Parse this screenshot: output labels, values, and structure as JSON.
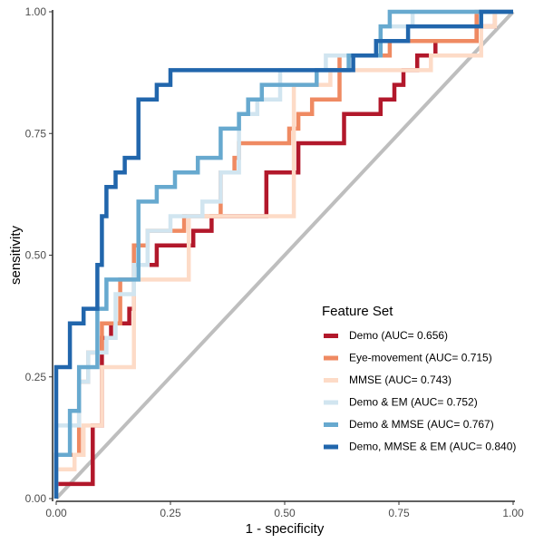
{
  "chart_data": {
    "type": "line",
    "title": "",
    "xlabel": "1 - specificity",
    "ylabel": "sensitivity",
    "xlim": [
      0,
      1
    ],
    "ylim": [
      0,
      1
    ],
    "x_ticks": [
      0,
      0.25,
      0.5,
      0.75,
      1
    ],
    "x_tick_labels": [
      "0.00",
      "0.25",
      "0.50",
      "0.75",
      "1.00"
    ],
    "y_ticks": [
      0,
      0.25,
      0.5,
      0.75,
      1
    ],
    "y_tick_labels": [
      "0.00",
      "0.25",
      "0.50",
      "0.75",
      "1.00"
    ],
    "grid": false,
    "legend": {
      "title": "Feature Set",
      "placement": "bottom-right"
    },
    "reference_line": {
      "x": [
        0,
        1
      ],
      "y": [
        0,
        1
      ],
      "color": "#bebebe"
    },
    "series": [
      {
        "name": "Demo (AUC= 0.656)",
        "color": "#b2182b",
        "points": [
          [
            0,
            0
          ],
          [
            0,
            0.03
          ],
          [
            0.08,
            0.03
          ],
          [
            0.08,
            0.15
          ],
          [
            0.1,
            0.15
          ],
          [
            0.1,
            0.33
          ],
          [
            0.12,
            0.33
          ],
          [
            0.12,
            0.36
          ],
          [
            0.16,
            0.36
          ],
          [
            0.16,
            0.39
          ],
          [
            0.17,
            0.39
          ],
          [
            0.17,
            0.48
          ],
          [
            0.22,
            0.48
          ],
          [
            0.22,
            0.52
          ],
          [
            0.3,
            0.52
          ],
          [
            0.3,
            0.55
          ],
          [
            0.34,
            0.55
          ],
          [
            0.34,
            0.58
          ],
          [
            0.46,
            0.58
          ],
          [
            0.46,
            0.67
          ],
          [
            0.53,
            0.67
          ],
          [
            0.53,
            0.73
          ],
          [
            0.63,
            0.73
          ],
          [
            0.63,
            0.79
          ],
          [
            0.71,
            0.79
          ],
          [
            0.71,
            0.82
          ],
          [
            0.74,
            0.82
          ],
          [
            0.74,
            0.85
          ],
          [
            0.76,
            0.85
          ],
          [
            0.76,
            0.88
          ],
          [
            0.79,
            0.88
          ],
          [
            0.79,
            0.91
          ],
          [
            0.83,
            0.91
          ],
          [
            0.83,
            0.94
          ],
          [
            0.92,
            0.94
          ],
          [
            0.92,
            0.97
          ],
          [
            0.96,
            0.97
          ],
          [
            0.96,
            1
          ],
          [
            1,
            1
          ]
        ]
      },
      {
        "name": "Eye-movement (AUC= 0.715)",
        "color": "#ef8a62",
        "points": [
          [
            0,
            0
          ],
          [
            0,
            0.09
          ],
          [
            0.05,
            0.09
          ],
          [
            0.05,
            0.24
          ],
          [
            0.07,
            0.24
          ],
          [
            0.07,
            0.3
          ],
          [
            0.1,
            0.3
          ],
          [
            0.1,
            0.36
          ],
          [
            0.14,
            0.36
          ],
          [
            0.14,
            0.45
          ],
          [
            0.17,
            0.45
          ],
          [
            0.17,
            0.52
          ],
          [
            0.2,
            0.52
          ],
          [
            0.2,
            0.55
          ],
          [
            0.28,
            0.55
          ],
          [
            0.28,
            0.58
          ],
          [
            0.36,
            0.58
          ],
          [
            0.36,
            0.67
          ],
          [
            0.39,
            0.67
          ],
          [
            0.39,
            0.7
          ],
          [
            0.4,
            0.7
          ],
          [
            0.4,
            0.73
          ],
          [
            0.51,
            0.73
          ],
          [
            0.51,
            0.76
          ],
          [
            0.53,
            0.76
          ],
          [
            0.53,
            0.79
          ],
          [
            0.56,
            0.79
          ],
          [
            0.56,
            0.82
          ],
          [
            0.62,
            0.82
          ],
          [
            0.62,
            0.91
          ],
          [
            0.73,
            0.91
          ],
          [
            0.73,
            0.94
          ],
          [
            0.92,
            0.94
          ],
          [
            0.92,
            1
          ],
          [
            1,
            1
          ]
        ]
      },
      {
        "name": "MMSE (AUC= 0.743)",
        "color": "#fddbc7",
        "points": [
          [
            0,
            0
          ],
          [
            0,
            0.06
          ],
          [
            0.04,
            0.06
          ],
          [
            0.04,
            0.09
          ],
          [
            0.06,
            0.09
          ],
          [
            0.06,
            0.15
          ],
          [
            0.1,
            0.15
          ],
          [
            0.1,
            0.27
          ],
          [
            0.17,
            0.27
          ],
          [
            0.17,
            0.45
          ],
          [
            0.29,
            0.45
          ],
          [
            0.29,
            0.58
          ],
          [
            0.52,
            0.58
          ],
          [
            0.52,
            0.85
          ],
          [
            0.6,
            0.85
          ],
          [
            0.6,
            0.88
          ],
          [
            0.82,
            0.88
          ],
          [
            0.82,
            0.91
          ],
          [
            0.93,
            0.91
          ],
          [
            0.93,
            0.97
          ],
          [
            0.96,
            0.97
          ],
          [
            0.96,
            1
          ],
          [
            1,
            1
          ]
        ]
      },
      {
        "name": "Demo & EM (AUC= 0.752)",
        "color": "#d1e5f0",
        "points": [
          [
            0,
            0
          ],
          [
            0,
            0.15
          ],
          [
            0.05,
            0.15
          ],
          [
            0.05,
            0.24
          ],
          [
            0.07,
            0.24
          ],
          [
            0.07,
            0.3
          ],
          [
            0.11,
            0.3
          ],
          [
            0.11,
            0.33
          ],
          [
            0.13,
            0.33
          ],
          [
            0.13,
            0.42
          ],
          [
            0.17,
            0.42
          ],
          [
            0.17,
            0.48
          ],
          [
            0.2,
            0.48
          ],
          [
            0.2,
            0.55
          ],
          [
            0.25,
            0.55
          ],
          [
            0.25,
            0.58
          ],
          [
            0.32,
            0.58
          ],
          [
            0.32,
            0.61
          ],
          [
            0.36,
            0.61
          ],
          [
            0.36,
            0.67
          ],
          [
            0.4,
            0.67
          ],
          [
            0.4,
            0.79
          ],
          [
            0.44,
            0.79
          ],
          [
            0.44,
            0.82
          ],
          [
            0.49,
            0.82
          ],
          [
            0.49,
            0.88
          ],
          [
            0.59,
            0.88
          ],
          [
            0.59,
            0.91
          ],
          [
            0.71,
            0.91
          ],
          [
            0.71,
            0.97
          ],
          [
            0.78,
            0.97
          ],
          [
            0.78,
            1
          ],
          [
            1,
            1
          ]
        ]
      },
      {
        "name": "Demo & MMSE (AUC= 0.767)",
        "color": "#67a9cf",
        "points": [
          [
            0,
            0
          ],
          [
            0,
            0.09
          ],
          [
            0.03,
            0.09
          ],
          [
            0.03,
            0.18
          ],
          [
            0.05,
            0.18
          ],
          [
            0.05,
            0.27
          ],
          [
            0.09,
            0.27
          ],
          [
            0.09,
            0.39
          ],
          [
            0.11,
            0.39
          ],
          [
            0.11,
            0.45
          ],
          [
            0.18,
            0.45
          ],
          [
            0.18,
            0.61
          ],
          [
            0.22,
            0.61
          ],
          [
            0.22,
            0.64
          ],
          [
            0.26,
            0.64
          ],
          [
            0.26,
            0.67
          ],
          [
            0.31,
            0.67
          ],
          [
            0.31,
            0.7
          ],
          [
            0.36,
            0.7
          ],
          [
            0.36,
            0.76
          ],
          [
            0.4,
            0.76
          ],
          [
            0.4,
            0.79
          ],
          [
            0.42,
            0.79
          ],
          [
            0.42,
            0.82
          ],
          [
            0.45,
            0.82
          ],
          [
            0.45,
            0.85
          ],
          [
            0.57,
            0.85
          ],
          [
            0.57,
            0.88
          ],
          [
            0.64,
            0.88
          ],
          [
            0.64,
            0.91
          ],
          [
            0.71,
            0.91
          ],
          [
            0.71,
            0.97
          ],
          [
            0.73,
            0.97
          ],
          [
            0.73,
            1
          ],
          [
            1,
            1
          ]
        ]
      },
      {
        "name": "Demo, MMSE & EM (AUC= 0.840)",
        "color": "#2166ac",
        "points": [
          [
            0,
            0
          ],
          [
            0,
            0.27
          ],
          [
            0.03,
            0.27
          ],
          [
            0.03,
            0.36
          ],
          [
            0.06,
            0.36
          ],
          [
            0.06,
            0.39
          ],
          [
            0.09,
            0.39
          ],
          [
            0.09,
            0.48
          ],
          [
            0.1,
            0.48
          ],
          [
            0.1,
            0.58
          ],
          [
            0.11,
            0.58
          ],
          [
            0.11,
            0.64
          ],
          [
            0.13,
            0.64
          ],
          [
            0.13,
            0.67
          ],
          [
            0.15,
            0.67
          ],
          [
            0.15,
            0.7
          ],
          [
            0.18,
            0.7
          ],
          [
            0.18,
            0.82
          ],
          [
            0.22,
            0.82
          ],
          [
            0.22,
            0.85
          ],
          [
            0.25,
            0.85
          ],
          [
            0.25,
            0.88
          ],
          [
            0.65,
            0.88
          ],
          [
            0.65,
            0.91
          ],
          [
            0.7,
            0.91
          ],
          [
            0.7,
            0.94
          ],
          [
            0.77,
            0.94
          ],
          [
            0.77,
            0.97
          ],
          [
            0.93,
            0.97
          ],
          [
            0.93,
            1
          ],
          [
            1,
            1
          ]
        ]
      }
    ]
  }
}
